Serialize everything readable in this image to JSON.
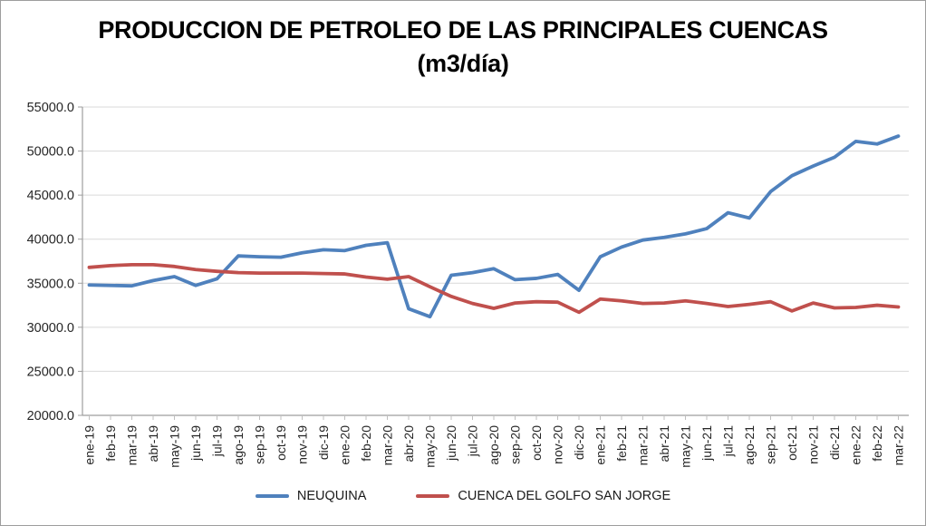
{
  "chart_data": {
    "type": "line",
    "title": "PRODUCCION DE PETROLEO DE LAS PRINCIPALES CUENCAS",
    "subtitle": "(m3/día)",
    "grid": true,
    "legend_position": "bottom",
    "categories": [
      "ene-19",
      "feb-19",
      "mar-19",
      "abr-19",
      "may-19",
      "jun-19",
      "jul-19",
      "ago-19",
      "sep-19",
      "oct-19",
      "nov-19",
      "dic-19",
      "ene-20",
      "feb-20",
      "mar-20",
      "abr-20",
      "may-20",
      "jun-20",
      "jul-20",
      "ago-20",
      "sep-20",
      "oct-20",
      "nov-20",
      "dic-20",
      "ene-21",
      "feb-21",
      "mar-21",
      "abr-21",
      "may-21",
      "jun-21",
      "jul-21",
      "ago-21",
      "sep-21",
      "oct-21",
      "nov-21",
      "dic-21",
      "ene-22",
      "feb-22",
      "mar-22"
    ],
    "y_axis": {
      "min": 20000,
      "max": 55000,
      "step": 5000,
      "tick_labels": [
        "20000.0",
        "25000.0",
        "30000.0",
        "35000.0",
        "40000.0",
        "45000.0",
        "50000.0",
        "55000.0"
      ]
    },
    "series": [
      {
        "name": "NEUQUINA",
        "color": "#4F81BD",
        "values": [
          34800,
          34750,
          34700,
          35300,
          35750,
          34750,
          35500,
          38100,
          38000,
          37950,
          38450,
          38800,
          38700,
          39300,
          39600,
          32100,
          31200,
          35900,
          36200,
          36650,
          35400,
          35550,
          36000,
          34200,
          38000,
          39100,
          39900,
          40200,
          40600,
          41200,
          43000,
          42400,
          45400,
          47200,
          48300,
          49300,
          51100,
          50800,
          51700
        ]
      },
      {
        "name": "CUENCA DEL GOLFO SAN JORGE",
        "color": "#C0504D",
        "values": [
          36800,
          37000,
          37100,
          37100,
          36900,
          36550,
          36350,
          36200,
          36150,
          36150,
          36150,
          36100,
          36050,
          35700,
          35450,
          35750,
          34600,
          33500,
          32700,
          32150,
          32750,
          32900,
          32850,
          31700,
          33200,
          33000,
          32700,
          32750,
          33000,
          32700,
          32350,
          32600,
          32900,
          31850,
          32750,
          32200,
          32250,
          32500,
          32300
        ]
      }
    ],
    "colors": {
      "gridline": "#D9D9D9",
      "axis": "#9E9E9E",
      "tick": "#BFBFBF"
    }
  }
}
